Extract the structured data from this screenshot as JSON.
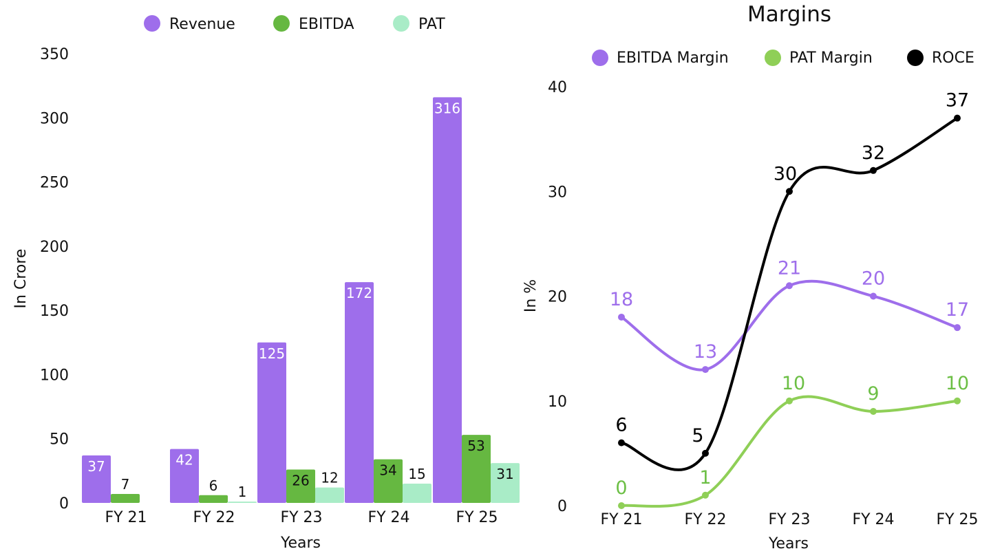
{
  "chart_data": [
    {
      "type": "bar",
      "title": "",
      "xlabel": "Years",
      "ylabel": "In Crore",
      "ylim": [
        0,
        350
      ],
      "yticks": [
        0,
        50,
        100,
        150,
        200,
        250,
        300,
        350
      ],
      "categories": [
        "FY 21",
        "FY 22",
        "FY 23",
        "FY 24",
        "FY 25"
      ],
      "legend_position": "top",
      "series": [
        {
          "name": "Revenue",
          "color": "#9e6eeb",
          "values": [
            37,
            42,
            125,
            172,
            316
          ]
        },
        {
          "name": "EBITDA",
          "color": "#66b841",
          "values": [
            7,
            6,
            26,
            34,
            53
          ]
        },
        {
          "name": "PAT",
          "color": "#a9ecc7",
          "values": [
            null,
            1,
            12,
            15,
            31
          ]
        }
      ]
    },
    {
      "type": "line",
      "title": "Margins",
      "xlabel": "Years",
      "ylabel": "In %",
      "ylim": [
        0,
        40
      ],
      "yticks": [
        0,
        10,
        20,
        30,
        40
      ],
      "categories": [
        "FY 21",
        "FY 22",
        "FY 23",
        "FY 24",
        "FY 25"
      ],
      "legend_position": "top",
      "series": [
        {
          "name": "EBITDA Margin",
          "color": "#9e6eeb",
          "values": [
            18,
            13,
            21,
            20,
            17
          ]
        },
        {
          "name": "PAT Margin",
          "color": "#8fcf57",
          "label_color": "#6cbf45",
          "values": [
            0,
            1,
            10,
            9,
            10
          ]
        },
        {
          "name": "ROCE",
          "color": "#000000",
          "values": [
            6,
            5,
            30,
            32,
            37
          ]
        }
      ]
    }
  ]
}
